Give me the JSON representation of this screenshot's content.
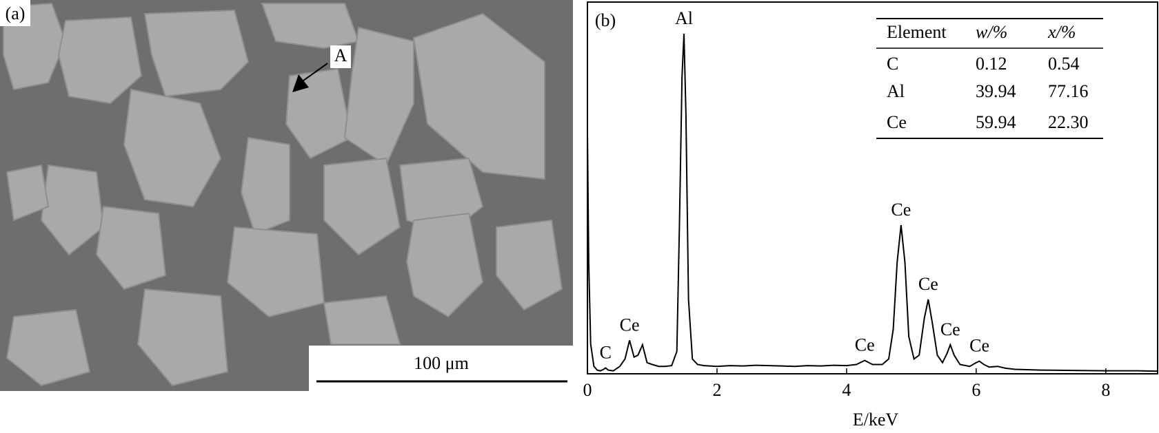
{
  "panel_a": {
    "label": "(a)",
    "annotation": "A",
    "scale_bar": "100 μm"
  },
  "chart_data": {
    "type": "line",
    "label": "(b)",
    "x_label": "E/keV",
    "color": "#000000",
    "xlim": [
      0,
      8.8
    ],
    "xticks": [
      0,
      2,
      4,
      6,
      8
    ],
    "ylim": [
      0,
      100
    ],
    "x": [
      0,
      0.02,
      0.05,
      0.1,
      0.15,
      0.2,
      0.25,
      0.28,
      0.32,
      0.4,
      0.5,
      0.58,
      0.65,
      0.72,
      0.78,
      0.85,
      0.92,
      1.0,
      1.1,
      1.2,
      1.3,
      1.38,
      1.42,
      1.46,
      1.49,
      1.52,
      1.56,
      1.62,
      1.7,
      1.8,
      2.0,
      2.2,
      2.4,
      2.6,
      2.8,
      3.0,
      3.2,
      3.4,
      3.6,
      3.8,
      4.0,
      4.15,
      4.28,
      4.4,
      4.55,
      4.65,
      4.72,
      4.78,
      4.84,
      4.9,
      4.96,
      5.04,
      5.12,
      5.2,
      5.26,
      5.32,
      5.4,
      5.48,
      5.55,
      5.6,
      5.66,
      5.75,
      5.9,
      6.0,
      6.05,
      6.12,
      6.2,
      6.33,
      6.45,
      6.6,
      7.0,
      7.5,
      8.0,
      8.5,
      8.8
    ],
    "values": [
      65,
      30,
      8,
      2,
      1,
      0.8,
      1.2,
      1.6,
      1,
      0.8,
      2,
      4,
      9,
      4.5,
      5,
      7.8,
      3,
      2.5,
      2,
      2,
      2.2,
      6,
      40,
      80,
      91.5,
      70,
      20,
      4,
      2.5,
      2.2,
      2.0,
      2.2,
      2.1,
      2.3,
      2.2,
      2.1,
      2.0,
      2.2,
      2.1,
      2.3,
      2.2,
      2.5,
      3.6,
      2.5,
      2.5,
      4,
      12,
      30,
      40,
      30,
      10,
      4,
      5,
      15,
      20,
      14,
      5,
      3,
      5.5,
      7.8,
      5,
      2.5,
      2,
      3,
      3.4,
      2.5,
      1.8,
      2,
      1.5,
      1.2,
      1,
      0.9,
      0.8,
      0.8,
      0.7
    ],
    "annotations": [
      {
        "text": "C",
        "x": 0.28
      },
      {
        "text": "Ce",
        "x": 0.65
      },
      {
        "text": "Al",
        "x": 1.49
      },
      {
        "text": "Ce",
        "x": 4.28
      },
      {
        "text": "Ce",
        "x": 4.84
      },
      {
        "text": "Ce",
        "x": 5.26
      },
      {
        "text": "Ce",
        "x": 5.6
      },
      {
        "text": "Ce",
        "x": 6.05
      }
    ]
  },
  "table": {
    "columns": [
      "Element",
      "w/%",
      "x/%"
    ],
    "rows": [
      [
        "C",
        "0.12",
        "0.54"
      ],
      [
        "Al",
        "39.94",
        "77.16"
      ],
      [
        "Ce",
        "59.94",
        "22.30"
      ]
    ]
  }
}
